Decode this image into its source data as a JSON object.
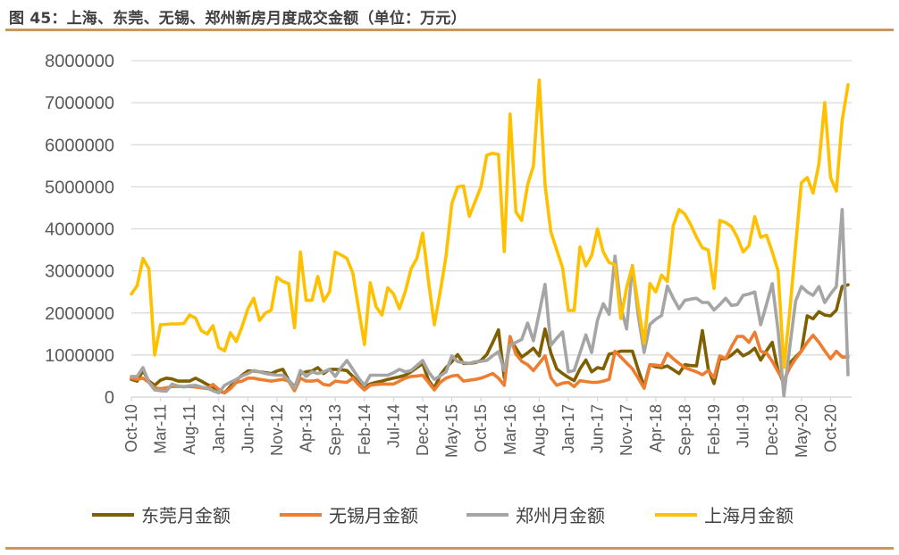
{
  "title": "图 45：上海、东莞、无锡、郑州新房月度成交金额（单位：万元）",
  "chart_data": {
    "type": "line",
    "title": "",
    "xlabel": "",
    "ylabel": "",
    "x_range": [
      "Oct-10",
      "Jan-21"
    ],
    "frequency": "monthly",
    "ylim": [
      0,
      8000000
    ],
    "yticks": [
      0,
      1000000,
      2000000,
      3000000,
      4000000,
      5000000,
      6000000,
      7000000,
      8000000
    ],
    "ytick_labels": [
      "0",
      "1000000",
      "2000000",
      "3000000",
      "4000000",
      "5000000",
      "6000000",
      "7000000",
      "8000000"
    ],
    "xtick_labels": [
      "Oct-10",
      "Mar-11",
      "Aug-11",
      "Jan-12",
      "Jun-12",
      "Nov-12",
      "Apr-13",
      "Sep-13",
      "Feb-14",
      "Jul-14",
      "Dec-14",
      "May-15",
      "Oct-15",
      "Mar-16",
      "Aug-16",
      "Jan-17",
      "Jun-17",
      "Nov-17",
      "Apr-18",
      "Sep-18",
      "Feb-19",
      "Jul-19",
      "Dec-19",
      "May-20",
      "Oct-20"
    ],
    "grid": "horizontal",
    "legend_position": "bottom",
    "series": [
      {
        "name": "东莞月金额",
        "color": "#7F6000",
        "values": [
          420000,
          380000,
          630000,
          380000,
          280000,
          400000,
          450000,
          430000,
          380000,
          380000,
          380000,
          450000,
          380000,
          300000,
          240000,
          150000,
          100000,
          250000,
          400000,
          520000,
          620000,
          620000,
          600000,
          580000,
          560000,
          620000,
          660000,
          400000,
          240000,
          560000,
          600000,
          620000,
          700000,
          560000,
          660000,
          660000,
          650000,
          630000,
          490000,
          350000,
          240000,
          310000,
          350000,
          380000,
          420000,
          450000,
          480000,
          520000,
          600000,
          700000,
          800000,
          400000,
          210000,
          520000,
          700000,
          840000,
          1010000,
          800000,
          800000,
          820000,
          870000,
          1010000,
          1290000,
          1600000,
          460000,
          1370000,
          1160000,
          950000,
          1050000,
          1160000,
          980000,
          1620000,
          1050000,
          670000,
          560000,
          470000,
          390000,
          670000,
          880000,
          600000,
          700000,
          670000,
          1020000,
          1050000,
          1090000,
          1090000,
          1090000,
          650000,
          250000,
          770000,
          720000,
          700000,
          740000,
          650000,
          560000,
          770000,
          750000,
          740000,
          1580000,
          670000,
          320000,
          910000,
          910000,
          1000000,
          1120000,
          980000,
          1050000,
          1160000,
          880000,
          1100000,
          1300000,
          630000,
          320000,
          810000,
          950000,
          1090000,
          1930000,
          1860000,
          2030000,
          1950000,
          1930000,
          2070000,
          2630000,
          2670000
        ]
      },
      {
        "name": "无锡月金额",
        "color": "#ED7D31",
        "values": [
          450000,
          420000,
          450000,
          350000,
          220000,
          200000,
          220000,
          250000,
          250000,
          250000,
          250000,
          240000,
          220000,
          200000,
          300000,
          180000,
          100000,
          200000,
          350000,
          380000,
          450000,
          450000,
          420000,
          400000,
          380000,
          400000,
          420000,
          380000,
          150000,
          450000,
          380000,
          380000,
          400000,
          300000,
          280000,
          380000,
          360000,
          350000,
          450000,
          300000,
          170000,
          280000,
          300000,
          310000,
          310000,
          310000,
          380000,
          450000,
          490000,
          500000,
          520000,
          350000,
          170000,
          350000,
          450000,
          500000,
          520000,
          380000,
          400000,
          420000,
          450000,
          500000,
          560000,
          450000,
          280000,
          1440000,
          1020000,
          850000,
          770000,
          630000,
          800000,
          980000,
          460000,
          280000,
          330000,
          350000,
          250000,
          390000,
          370000,
          350000,
          350000,
          380000,
          420000,
          1090000,
          950000,
          810000,
          670000,
          450000,
          210000,
          770000,
          760000,
          740000,
          1040000,
          910000,
          800000,
          700000,
          650000,
          600000,
          530000,
          630000,
          460000,
          980000,
          910000,
          1200000,
          1440000,
          1440000,
          1300000,
          1540000,
          1090000,
          1050000,
          850000,
          600000,
          390000,
          700000,
          910000,
          1090000,
          1300000,
          1470000,
          1300000,
          1100000,
          910000,
          1090000,
          950000,
          950000
        ]
      },
      {
        "name": "郑州月金额",
        "color": "#A5A5A5",
        "values": [
          490000,
          490000,
          700000,
          350000,
          170000,
          150000,
          140000,
          310000,
          260000,
          240000,
          270000,
          280000,
          240000,
          210000,
          150000,
          100000,
          280000,
          350000,
          420000,
          500000,
          560000,
          630000,
          600000,
          560000,
          540000,
          520000,
          520000,
          400000,
          210000,
          630000,
          490000,
          600000,
          560000,
          600000,
          660000,
          490000,
          700000,
          870000,
          660000,
          450000,
          280000,
          520000,
          520000,
          520000,
          520000,
          580000,
          660000,
          600000,
          630000,
          750000,
          870000,
          600000,
          420000,
          500000,
          600000,
          980000,
          840000,
          820000,
          800000,
          840000,
          850000,
          870000,
          980000,
          1080000,
          630000,
          1230000,
          1300000,
          1370000,
          1760000,
          1340000,
          2000000,
          2680000,
          1230000,
          1400000,
          1550000,
          600000,
          630000,
          1050000,
          1480000,
          1060000,
          1830000,
          2220000,
          1970000,
          3350000,
          2150000,
          1620000,
          3130000,
          1940000,
          1060000,
          1730000,
          1850000,
          1940000,
          2640000,
          2350000,
          2100000,
          2300000,
          2330000,
          2350000,
          2250000,
          2250000,
          2070000,
          2200000,
          2350000,
          2180000,
          2200000,
          2420000,
          2450000,
          2500000,
          1720000,
          2200000,
          2700000,
          1580000,
          30000,
          1200000,
          2280000,
          2630000,
          2500000,
          2420000,
          2630000,
          2250000,
          2450000,
          2630000,
          4460000,
          530000
        ]
      },
      {
        "name": "上海月金额",
        "color": "#FFC000",
        "values": [
          2450000,
          2650000,
          3300000,
          3050000,
          1000000,
          1720000,
          1730000,
          1740000,
          1740000,
          1750000,
          1950000,
          1880000,
          1580000,
          1500000,
          1700000,
          1180000,
          1100000,
          1530000,
          1320000,
          1680000,
          2100000,
          2350000,
          1820000,
          2000000,
          2070000,
          2850000,
          2750000,
          2700000,
          1650000,
          3450000,
          2300000,
          2300000,
          2870000,
          2280000,
          2500000,
          3450000,
          3380000,
          3300000,
          2950000,
          2100000,
          1250000,
          2720000,
          2150000,
          1950000,
          2600000,
          2450000,
          2100000,
          2500000,
          3050000,
          3300000,
          3900000,
          2750000,
          1720000,
          2500000,
          3350000,
          4600000,
          5000000,
          5020000,
          4300000,
          4650000,
          5000000,
          5750000,
          5800000,
          5770000,
          3460000,
          6730000,
          4400000,
          4200000,
          5050000,
          5500000,
          7540000,
          5050000,
          3930000,
          3500000,
          3080000,
          2060000,
          2060000,
          3570000,
          3120000,
          3370000,
          4000000,
          3450000,
          3200000,
          3150000,
          1870000,
          2600000,
          3120000,
          2170000,
          1280000,
          2700000,
          2500000,
          2900000,
          2750000,
          4080000,
          4460000,
          4350000,
          4100000,
          3800000,
          3550000,
          3500000,
          2580000,
          4200000,
          4150000,
          4050000,
          3800000,
          3450000,
          3600000,
          4290000,
          3800000,
          3850000,
          3450000,
          3000000,
          700000,
          2050000,
          3600000,
          5100000,
          5220000,
          4850000,
          5550000,
          7000000,
          5220000,
          4900000,
          6580000,
          7430000
        ]
      }
    ]
  }
}
